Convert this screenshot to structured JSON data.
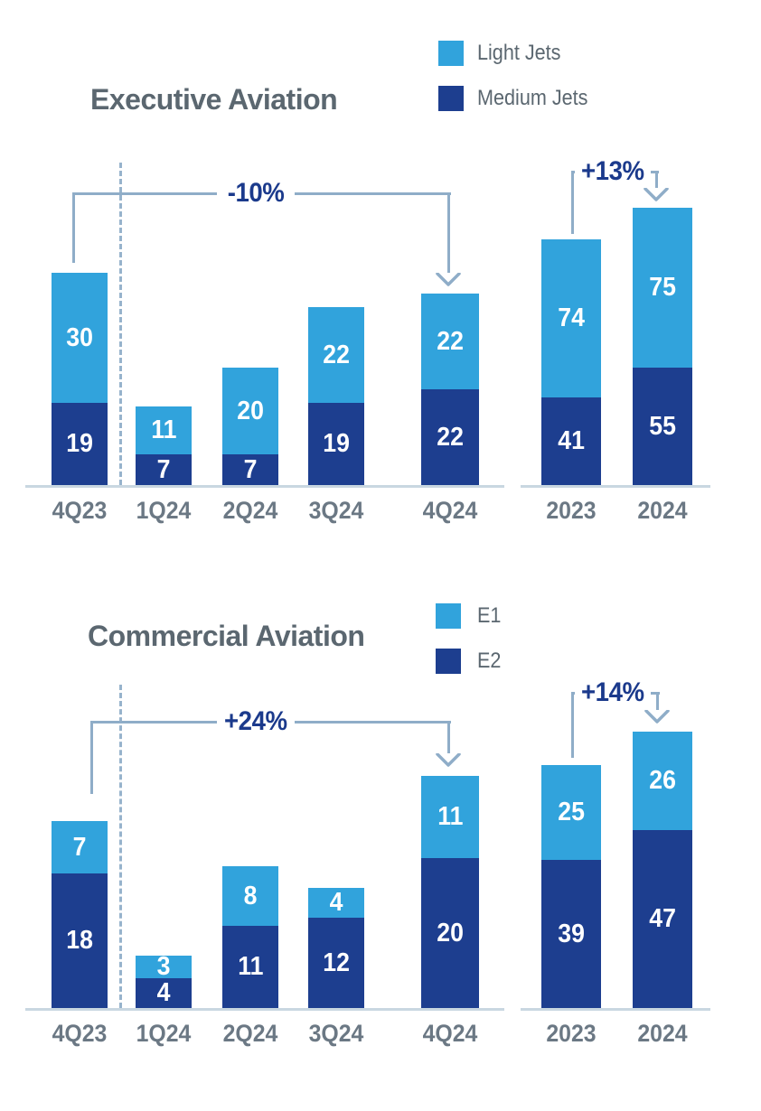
{
  "background": "#ffffff",
  "accent_colors": {
    "light_blue": "#31a3dc",
    "dark_blue": "#1d3e8f",
    "annotation_navy": "#1b3a8c",
    "line_steel_blue": "#8fadc8"
  },
  "chart_data": [
    {
      "type": "bar",
      "stacked": true,
      "title": "Executive Aviation",
      "legend_position": "top-right",
      "series_names": [
        "Light Jets",
        "Medium Jets"
      ],
      "colors": {
        "Light Jets": "#31a3dc",
        "Medium Jets": "#1d3e8f"
      },
      "groups": [
        {
          "id": "quarterly",
          "categories": [
            "4Q23",
            "1Q24",
            "2Q24",
            "3Q24",
            "4Q24"
          ],
          "series": [
            {
              "name": "Light Jets",
              "values": [
                30,
                11,
                20,
                22,
                22
              ]
            },
            {
              "name": "Medium Jets",
              "values": [
                19,
                7,
                7,
                19,
                22
              ]
            }
          ],
          "annotation": {
            "label": "-10%",
            "from": "4Q23",
            "to": "4Q24"
          },
          "separator_after": "4Q23"
        },
        {
          "id": "annual",
          "categories": [
            "2023",
            "2024"
          ],
          "series": [
            {
              "name": "Light Jets",
              "values": [
                74,
                75
              ]
            },
            {
              "name": "Medium Jets",
              "values": [
                41,
                55
              ]
            }
          ],
          "annotation": {
            "label": "+13%",
            "from": "2023",
            "to": "2024"
          }
        }
      ]
    },
    {
      "type": "bar",
      "stacked": true,
      "title": "Commercial Aviation",
      "legend_position": "top-right",
      "series_names": [
        "E1",
        "E2"
      ],
      "colors": {
        "E1": "#31a3dc",
        "E2": "#1d3e8f"
      },
      "groups": [
        {
          "id": "quarterly",
          "categories": [
            "4Q23",
            "1Q24",
            "2Q24",
            "3Q24",
            "4Q24"
          ],
          "series": [
            {
              "name": "E1",
              "values": [
                7,
                3,
                8,
                4,
                11
              ]
            },
            {
              "name": "E2",
              "values": [
                18,
                4,
                11,
                12,
                20
              ]
            }
          ],
          "annotation": {
            "label": "+24%",
            "from": "4Q23",
            "to": "4Q24"
          },
          "separator_after": "4Q23"
        },
        {
          "id": "annual",
          "categories": [
            "2023",
            "2024"
          ],
          "series": [
            {
              "name": "E1",
              "values": [
                25,
                26
              ]
            },
            {
              "name": "E2",
              "values": [
                39,
                47
              ]
            }
          ],
          "annotation": {
            "label": "+14%",
            "from": "2023",
            "to": "2024"
          }
        }
      ]
    }
  ]
}
